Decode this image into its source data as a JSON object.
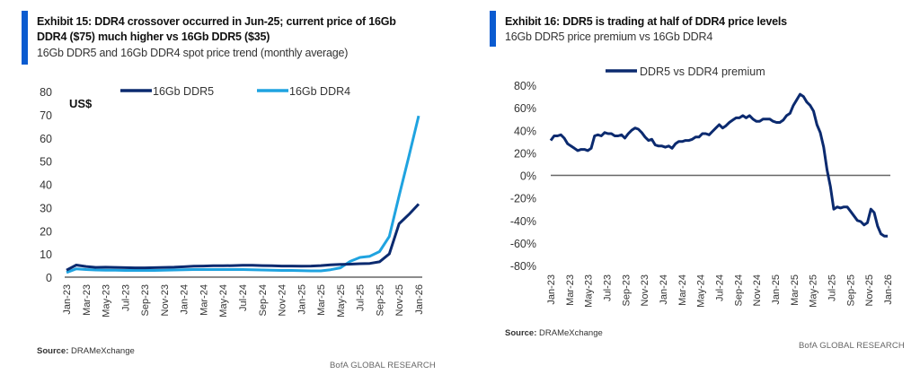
{
  "left": {
    "title_line1": "Exhibit 15: DDR4 crossover occurred in Jun-25; current price of 16Gb",
    "title_line2": "DDR4 ($75) much higher vs 16Gb DDR5 ($35)",
    "subtitle": "16Gb DDR5 and 16Gb DDR4 spot price trend (monthly average)",
    "source_label": "Source:",
    "source_value": "DRAMeXchange",
    "brand": "BofA GLOBAL RESEARCH"
  },
  "right": {
    "title": "Exhibit 16: DDR5 is trading at half of DDR4 price levels",
    "subtitle": "16Gb DDR5 price premium vs 16Gb DDR4",
    "source_label": "Source:",
    "source_value": "DRAMeXchange",
    "brand": "BofA GLOBAL RESEARCH"
  },
  "colors": {
    "accent_bar": "#0a5bd0",
    "ddr5": "#0b2a6f",
    "ddr4": "#1fa3e0",
    "premium": "#0b2a6f",
    "axis": "#666666"
  },
  "chart_data": [
    {
      "type": "line",
      "title": "16Gb DDR5 and 16Gb DDR4 spot price trend (monthly average)",
      "ylabel": "US$",
      "xlabel": "",
      "ylim": [
        0,
        80
      ],
      "yticks": [
        0,
        10,
        20,
        30,
        40,
        50,
        60,
        70,
        80
      ],
      "xtick_labels": [
        "Jan-23",
        "Mar-23",
        "May-23",
        "Jul-23",
        "Sep-23",
        "Nov-23",
        "Jan-24",
        "Mar-24",
        "May-24",
        "Jul-24",
        "Sep-24",
        "Nov-24",
        "Jan-25",
        "Mar-25",
        "May-25",
        "Jul-25",
        "Sep-25",
        "Nov-25",
        "Jan-26"
      ],
      "legend_position": "top",
      "grid": false,
      "x": [
        "Jan-23",
        "Feb-23",
        "Mar-23",
        "Apr-23",
        "May-23",
        "Jun-23",
        "Jul-23",
        "Aug-23",
        "Sep-23",
        "Oct-23",
        "Nov-23",
        "Dec-23",
        "Jan-24",
        "Feb-24",
        "Mar-24",
        "Apr-24",
        "May-24",
        "Jun-24",
        "Jul-24",
        "Aug-24",
        "Sep-24",
        "Oct-24",
        "Nov-24",
        "Dec-24",
        "Jan-25",
        "Feb-25",
        "Mar-25",
        "Apr-25",
        "May-25",
        "Jun-25",
        "Jul-25",
        "Aug-25",
        "Sep-25",
        "Oct-25",
        "Nov-25",
        "Dec-25",
        "Jan-26"
      ],
      "series": [
        {
          "name": "16Gb DDR5",
          "color_key": "ddr5",
          "values": [
            3.0,
            5.2,
            4.6,
            4.2,
            4.3,
            4.2,
            4.1,
            4.0,
            4.0,
            4.1,
            4.2,
            4.3,
            4.5,
            4.7,
            4.8,
            4.9,
            4.9,
            5.0,
            5.1,
            5.1,
            5.0,
            4.9,
            4.8,
            4.8,
            4.7,
            4.8,
            5.0,
            5.3,
            5.5,
            5.6,
            5.8,
            5.9,
            6.6,
            10.0,
            23.0,
            27.0,
            31.5
          ]
        },
        {
          "name": "16Gb DDR4",
          "color_key": "ddr4",
          "values": [
            2.0,
            3.6,
            3.3,
            3.1,
            3.0,
            3.0,
            2.9,
            2.9,
            2.9,
            2.9,
            3.0,
            3.1,
            3.2,
            3.3,
            3.3,
            3.3,
            3.3,
            3.3,
            3.3,
            3.2,
            3.1,
            3.0,
            2.9,
            2.9,
            2.8,
            2.7,
            2.7,
            3.2,
            4.0,
            6.8,
            8.5,
            9.0,
            11.0,
            17.5,
            35.0,
            52.0,
            69.5
          ]
        }
      ]
    },
    {
      "type": "line",
      "title": "16Gb DDR5 price premium vs 16Gb DDR4",
      "ylabel": "",
      "xlabel": "",
      "ylim": [
        -80,
        80
      ],
      "yticks": [
        "80%",
        "60%",
        "40%",
        "20%",
        "0%",
        "-20%",
        "-40%",
        "-60%",
        "-80%"
      ],
      "ytick_values": [
        80,
        60,
        40,
        20,
        0,
        -20,
        -40,
        -60,
        -80
      ],
      "xtick_labels": [
        "Jan-23",
        "Mar-23",
        "May-23",
        "Jul-23",
        "Sep-23",
        "Nov-23",
        "Jan-24",
        "Mar-24",
        "May-24",
        "Jul-24",
        "Sep-24",
        "Nov-24",
        "Jan-25",
        "Mar-25",
        "May-25",
        "Jul-25",
        "Sep-25",
        "Nov-25",
        "Jan-26"
      ],
      "legend_position": "top",
      "grid": false,
      "x_start": "Jan-23",
      "x_end": "Jan-26",
      "series": [
        {
          "name": "DDR5 vs DDR4 premium",
          "color_key": "premium",
          "values": [
            31,
            35,
            35,
            36,
            33,
            28,
            26,
            24,
            22,
            23,
            23,
            22,
            24,
            35,
            36,
            35,
            38,
            37,
            37,
            35,
            35,
            36,
            33,
            37,
            40,
            42,
            41,
            38,
            34,
            31,
            32,
            27,
            26,
            26,
            25,
            26,
            24,
            28,
            30,
            30,
            31,
            31,
            32,
            34,
            34,
            37,
            37,
            36,
            39,
            42,
            45,
            42,
            44,
            47,
            49,
            51,
            51,
            53,
            51,
            53,
            50,
            48,
            48,
            50,
            50,
            50,
            48,
            47,
            47,
            49,
            53,
            55,
            62,
            67,
            72,
            70,
            65,
            62,
            57,
            45,
            38,
            25,
            5,
            -10,
            -30,
            -28,
            -29,
            -28,
            -28,
            -32,
            -36,
            -40,
            -41,
            -44,
            -42,
            -30,
            -33,
            -45,
            -52,
            -54,
            -54
          ]
        }
      ]
    }
  ]
}
